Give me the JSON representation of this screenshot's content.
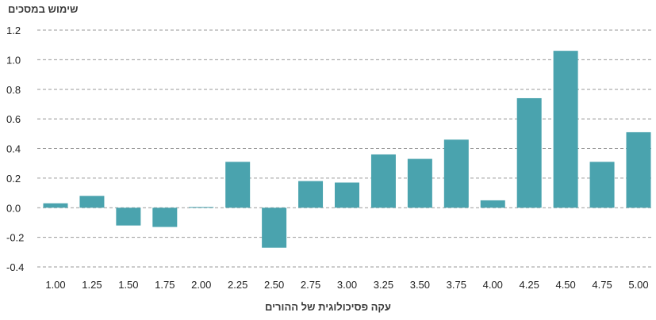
{
  "chart_data": {
    "type": "bar",
    "ylabel": "שימוש במסכים",
    "xlabel": "עקה פסיכולוגית של ההורים",
    "categories": [
      "1.00",
      "1.25",
      "1.50",
      "1.75",
      "2.00",
      "2.25",
      "2.50",
      "2.75",
      "3.00",
      "3.25",
      "3.50",
      "3.75",
      "4.00",
      "4.25",
      "4.50",
      "4.75",
      "5.00"
    ],
    "values": [
      0.03,
      0.08,
      -0.12,
      -0.13,
      0.005,
      0.31,
      -0.27,
      0.18,
      0.17,
      0.36,
      0.33,
      0.46,
      0.05,
      0.74,
      1.06,
      0.31,
      0.51
    ],
    "ylim": [
      -0.4,
      1.2
    ],
    "yticks": [
      "1.2",
      "1.0",
      "0.8",
      "0.6",
      "0.4",
      "0.2",
      "0.0",
      "-0.2",
      "-0.4"
    ],
    "ytick_values": [
      1.2,
      1.0,
      0.8,
      0.6,
      0.4,
      0.2,
      0.0,
      -0.2,
      -0.4
    ],
    "grid": true,
    "bar_color": "#4aa3ae"
  }
}
